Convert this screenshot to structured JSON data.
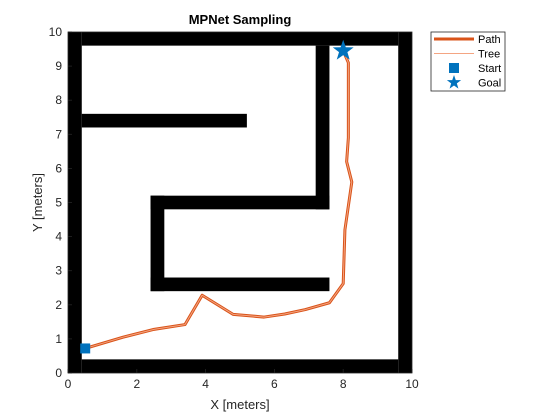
{
  "chart_data": {
    "type": "line",
    "title": "MPNet Sampling",
    "xlabel": "X [meters]",
    "ylabel": "Y [meters]",
    "xlim": [
      0,
      10
    ],
    "ylim": [
      0,
      10
    ],
    "xticks": [
      "0",
      "2",
      "4",
      "6",
      "8",
      "10"
    ],
    "yticks": [
      "0",
      "1",
      "2",
      "3",
      "4",
      "5",
      "6",
      "7",
      "8",
      "9",
      "10"
    ],
    "grid": false,
    "legend_position": "outside-top-right",
    "obstacles": [
      {
        "x0": 0.4,
        "x1": 9.6,
        "y0": 9.6,
        "y1": 10.0
      },
      {
        "x0": 0.4,
        "x1": 9.6,
        "y0": 0.4,
        "y1": 0.0
      },
      {
        "x0": 0.0,
        "x1": 0.4,
        "y0": 0.0,
        "y1": 10.0
      },
      {
        "x0": 9.6,
        "x1": 10.0,
        "y0": 0.0,
        "y1": 10.0
      },
      {
        "x0": 0.4,
        "x1": 5.2,
        "y0": 7.2,
        "y1": 7.6
      },
      {
        "x0": 7.2,
        "x1": 7.6,
        "y0": 4.8,
        "y1": 9.6
      },
      {
        "x0": 2.4,
        "x1": 7.6,
        "y0": 4.8,
        "y1": 5.2
      },
      {
        "x0": 2.4,
        "x1": 2.8,
        "y0": 2.4,
        "y1": 5.2
      },
      {
        "x0": 2.4,
        "x1": 7.6,
        "y0": 2.4,
        "y1": 2.8
      }
    ],
    "series": [
      {
        "name": "Path",
        "color": "#d95319",
        "x": [
          0.5,
          1.6,
          2.5,
          3.4,
          3.9,
          4.8,
          5.7,
          6.3,
          6.9,
          7.6,
          8.0,
          8.05,
          8.25,
          8.1,
          8.15,
          8.15,
          8.0
        ],
        "y": [
          0.72,
          1.05,
          1.28,
          1.42,
          2.28,
          1.72,
          1.64,
          1.73,
          1.86,
          2.06,
          2.62,
          4.2,
          5.6,
          6.2,
          6.9,
          9.1,
          9.45
        ]
      },
      {
        "name": "Tree",
        "color": "#f4a582",
        "x": [
          0.5,
          1.6,
          2.5,
          3.4,
          3.9,
          4.8,
          5.7,
          6.3,
          6.9,
          7.6,
          8.0,
          8.05,
          8.25,
          8.1,
          8.15,
          8.15,
          8.0
        ],
        "y": [
          0.72,
          1.05,
          1.28,
          1.42,
          2.28,
          1.72,
          1.64,
          1.73,
          1.86,
          2.06,
          2.62,
          4.2,
          5.6,
          6.2,
          6.9,
          9.1,
          9.45
        ]
      }
    ],
    "markers": [
      {
        "name": "Start",
        "shape": "square",
        "color": "#0072bd",
        "x": 0.5,
        "y": 0.72
      },
      {
        "name": "Goal",
        "shape": "star",
        "color": "#0072bd",
        "x": 8.0,
        "y": 9.45
      }
    ],
    "legend": [
      "Path",
      "Tree",
      "Start",
      "Goal"
    ]
  }
}
